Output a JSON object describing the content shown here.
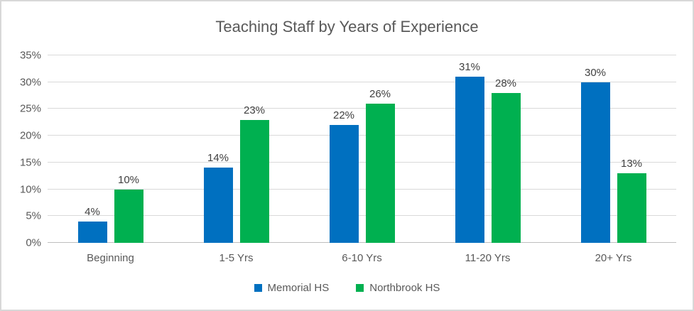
{
  "title": "Teaching Staff by Years of Experience",
  "colors": {
    "series_memorial": "#0070C0",
    "series_northbrook": "#00B050",
    "title_text": "#595959",
    "axis_text": "#595959",
    "data_label_text": "#404040",
    "gridline": "#D9D9D9",
    "axis_line": "#BFBFBF",
    "chart_border": "#D8D8D8",
    "background": "#FFFFFF"
  },
  "chart_data": {
    "type": "bar",
    "title": "Teaching Staff by Years of Experience",
    "categories": [
      "Beginning",
      "1-5 Yrs",
      "6-10 Yrs",
      "11-20 Yrs",
      "20+ Yrs"
    ],
    "series": [
      {
        "name": "Memorial HS",
        "color": "#0070C0",
        "values": [
          4,
          14,
          22,
          31,
          30
        ],
        "labels": [
          "4%",
          "14%",
          "22%",
          "31%",
          "30%"
        ]
      },
      {
        "name": "Northbrook HS",
        "color": "#00B050",
        "values": [
          10,
          23,
          26,
          28,
          13
        ],
        "labels": [
          "10%",
          "23%",
          "26%",
          "28%",
          "13%"
        ]
      }
    ],
    "xlabel": "",
    "ylabel": "",
    "ylim": [
      0,
      35
    ],
    "ytick_step": 5,
    "ytick_labels": [
      "0%",
      "5%",
      "10%",
      "15%",
      "20%",
      "25%",
      "30%",
      "35%"
    ],
    "grid": true,
    "legend_position": "bottom"
  }
}
